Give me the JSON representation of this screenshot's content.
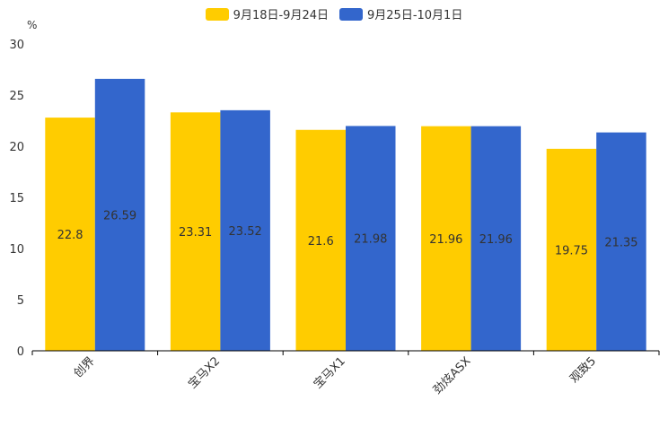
{
  "chart_data": {
    "type": "bar",
    "unit": "%",
    "categories": [
      "创界",
      "宝马X2",
      "宝马X1",
      "劲炫ASX",
      "观致5"
    ],
    "series": [
      {
        "name": "9月18日-9月24日",
        "color": "#ffcc00",
        "values": [
          22.8,
          23.31,
          21.6,
          21.96,
          19.75
        ]
      },
      {
        "name": "9月25日-10月1日",
        "color": "#3366cc",
        "values": [
          26.59,
          23.52,
          21.98,
          21.96,
          21.35
        ]
      }
    ],
    "yticks": [
      "0",
      "5",
      "10",
      "15",
      "20",
      "25",
      "30"
    ],
    "ylim": [
      0,
      30
    ],
    "legend_position": "top-center"
  }
}
